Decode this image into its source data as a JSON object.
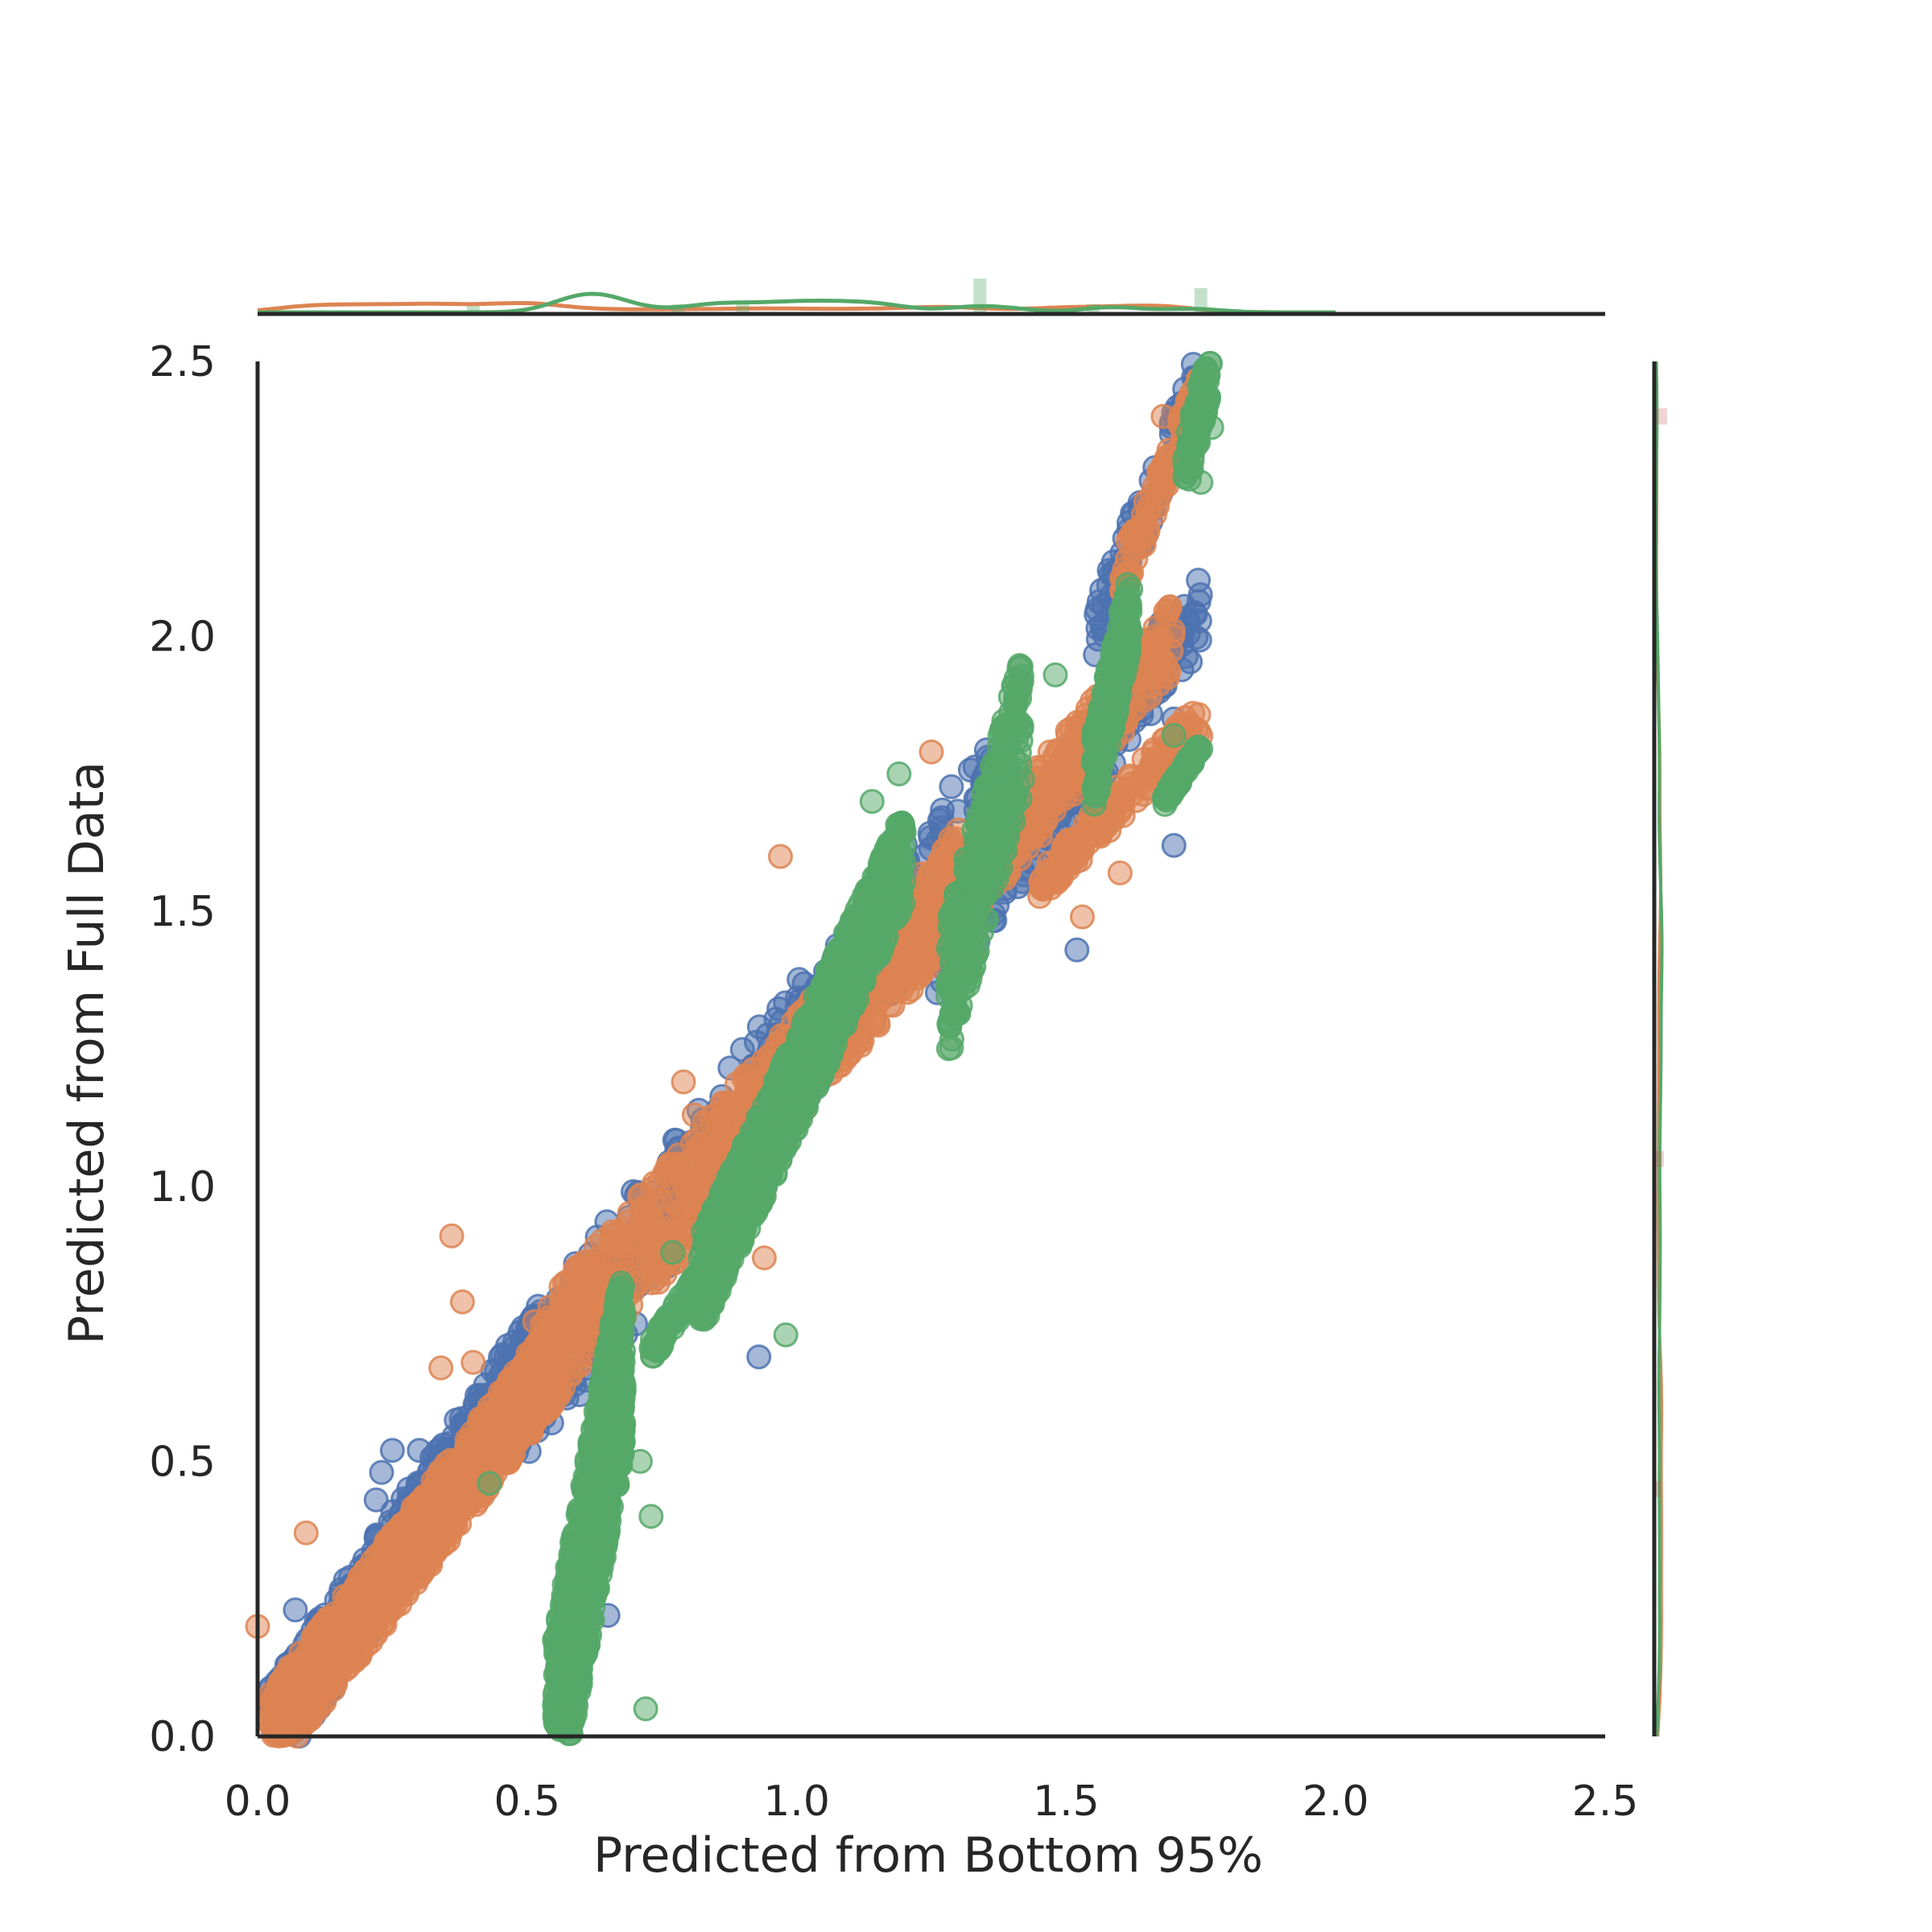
{
  "chart_data": {
    "type": "scatter",
    "subtype": "jointplot",
    "title": "",
    "xlabel": "Predicted from Bottom 95%",
    "ylabel": "Predicted from Full Data",
    "xlim": [
      0.0,
      2.5
    ],
    "ylim": [
      0.0,
      2.5
    ],
    "x_ticks": [
      "0.0",
      "0.5",
      "1.0",
      "1.5",
      "2.0",
      "2.5"
    ],
    "y_ticks": [
      "0.0",
      "0.5",
      "1.0",
      "1.5",
      "2.0",
      "2.5"
    ],
    "grid": false,
    "legend": "none",
    "marginals": {
      "top": "histogram+kde",
      "right": "histogram+kde"
    },
    "series": [
      {
        "color": "#4c72b0",
        "opacity": 0.5,
        "clusters": [
          {
            "x": [
              0.02,
              0.55
            ],
            "y": [
              0.0,
              0.75
            ],
            "count": 520
          },
          {
            "x": [
              0.48,
              1.4
            ],
            "y": [
              0.6,
              1.75
            ],
            "count": 420
          },
          {
            "x": [
              1.25,
              1.75
            ],
            "y": [
              1.4,
              2.05
            ],
            "count": 180
          },
          {
            "x": [
              1.55,
              1.75
            ],
            "y": [
              2.0,
              2.48
            ],
            "count": 80
          }
        ],
        "points": [
          [
            0.25,
            0.52
          ],
          [
            0.3,
            0.52
          ],
          [
            0.23,
            0.48
          ],
          [
            0.22,
            0.43
          ],
          [
            0.07,
            0.23
          ],
          [
            0.14,
            0.17
          ],
          [
            0.6,
            0.25
          ],
          [
            0.65,
            0.22
          ],
          [
            0.61,
            0.18
          ],
          [
            0.93,
            0.69
          ],
          [
            1.52,
            1.43
          ],
          [
            1.7,
            1.62
          ],
          [
            1.7,
            1.85
          ],
          [
            1.6,
            1.7
          ],
          [
            1.58,
            2.12
          ],
          [
            1.69,
            2.32
          ],
          [
            1.72,
            2.45
          ]
        ]
      },
      {
        "color": "#dd8452",
        "opacity": 0.5,
        "clusters": [
          {
            "x": [
              0.02,
              0.55
            ],
            "y": [
              0.0,
              0.68
            ],
            "count": 1100
          },
          {
            "x": [
              0.5,
              1.3
            ],
            "y": [
              0.65,
              1.55
            ],
            "count": 700
          },
          {
            "x": [
              1.2,
              1.7
            ],
            "y": [
              1.4,
              2.0
            ],
            "count": 380
          },
          {
            "x": [
              1.45,
              1.75
            ],
            "y": [
              1.55,
              1.85
            ],
            "count": 180
          },
          {
            "x": [
              1.6,
              1.75
            ],
            "y": [
              2.1,
              2.45
            ],
            "count": 90
          }
        ],
        "points": [
          [
            0.0,
            0.2
          ],
          [
            0.36,
            0.91
          ],
          [
            0.38,
            0.79
          ],
          [
            0.4,
            0.68
          ],
          [
            0.34,
            0.67
          ],
          [
            0.09,
            0.37
          ],
          [
            0.97,
            1.6
          ],
          [
            0.94,
            0.87
          ],
          [
            0.79,
            1.19
          ],
          [
            0.81,
            1.13
          ],
          [
            1.25,
            1.79
          ],
          [
            1.64,
            1.93
          ],
          [
            1.61,
            2.04
          ],
          [
            1.53,
            1.49
          ],
          [
            1.6,
            1.57
          ],
          [
            1.68,
            2.28
          ],
          [
            1.68,
            2.4
          ]
        ]
      },
      {
        "color": "#55a868",
        "opacity": 0.5,
        "clusters": [
          {
            "x": [
              0.55,
              0.68
            ],
            "y": [
              0.0,
              0.7
            ],
            "count": 900
          },
          {
            "x": [
              0.73,
              0.85
            ],
            "y": [
              0.7,
              0.88
            ],
            "count": 120
          },
          {
            "x": [
              0.82,
              1.2
            ],
            "y": [
              0.82,
              1.6
            ],
            "count": 1200
          },
          {
            "x": [
              1.28,
              1.42
            ],
            "y": [
              1.35,
              1.85
            ],
            "count": 300
          },
          {
            "x": [
              1.55,
              1.62
            ],
            "y": [
              1.75,
              2.05
            ],
            "count": 200
          },
          {
            "x": [
              1.68,
              1.75
            ],
            "y": [
              1.7,
              1.8
            ],
            "count": 60
          },
          {
            "x": [
              1.72,
              1.77
            ],
            "y": [
              2.3,
              2.5
            ],
            "count": 80
          }
        ],
        "points": [
          [
            0.43,
            0.46
          ],
          [
            0.77,
            0.88
          ],
          [
            0.98,
            0.73
          ],
          [
            1.19,
            1.75
          ],
          [
            1.14,
            1.7
          ],
          [
            1.48,
            1.93
          ],
          [
            1.7,
            1.82
          ],
          [
            1.75,
            2.28
          ],
          [
            1.77,
            2.38
          ],
          [
            0.73,
            0.4
          ],
          [
            0.71,
            0.5
          ],
          [
            0.72,
            0.05
          ]
        ]
      }
    ]
  }
}
